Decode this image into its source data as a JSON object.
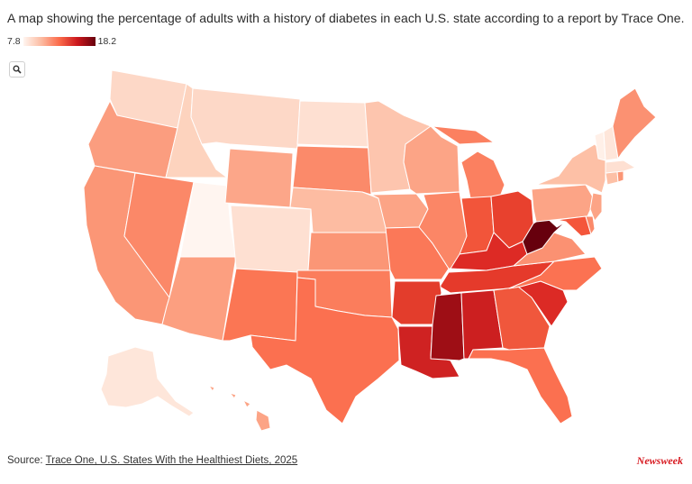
{
  "title": "A map showing the percentage of adults with a history of diabetes in each U.S. state according to a report by Trace One.",
  "legend": {
    "min_label": "7.8",
    "max_label": "18.2"
  },
  "zoom": {
    "icon": "search-icon"
  },
  "source": {
    "prefix": "Source:",
    "link_text": "Trace One, U.S. States With the Healthiest Diets, 2025"
  },
  "brand": "Newsweek",
  "colors": {
    "scale": [
      "#fff5f0",
      "#fcbba1",
      "#fb6a4a",
      "#cb181d",
      "#67000d"
    ],
    "border": "#ffffff",
    "brand": "#d71920"
  }
}
